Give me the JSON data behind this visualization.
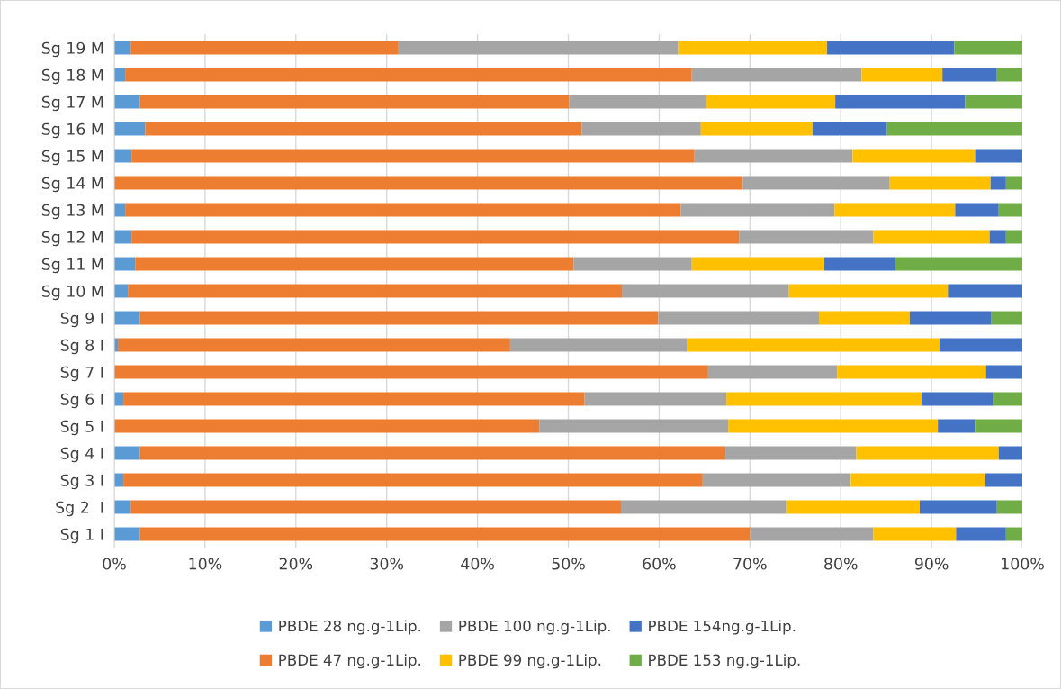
{
  "chart_data": {
    "type": "bar",
    "orientation": "horizontal",
    "stacked": true,
    "categories": [
      "Sg 19 M",
      "Sg 18 M",
      "Sg 17 M",
      "Sg 16 M",
      "Sg 15 M",
      "Sg 14 M",
      "Sg 13 M",
      "Sg 12 M",
      "Sg 11 M",
      "Sg 10 M",
      "Sg 9 I",
      "Sg 8 I",
      "Sg 7 I",
      "Sg 6 I",
      "Sg 5 I",
      "Sg 4 I",
      "Sg 3 I",
      "Sg 2  I",
      "Sg 1 I"
    ],
    "series": [
      {
        "name": "PBDE 28 ng.g-1Lip.",
        "color": "#5b9bd5",
        "values": [
          1.8,
          1.2,
          2.8,
          3.4,
          1.9,
          0,
          1.2,
          1.9,
          2.3,
          1.5,
          2.8,
          0.4,
          0,
          1.0,
          0,
          2.8,
          1.0,
          1.8,
          2.8
        ]
      },
      {
        "name": "PBDE 47 ng.g-1Lip.",
        "color": "#ed7d31",
        "values": [
          29.5,
          62.4,
          47.3,
          48.1,
          62.0,
          69.2,
          61.2,
          66.9,
          48.3,
          54.4,
          57.1,
          43.2,
          65.4,
          50.8,
          46.8,
          64.5,
          63.8,
          54.0,
          67.2
        ]
      },
      {
        "name": "PBDE 100 ng.g-1Lip.",
        "color": "#a5a5a5",
        "values": [
          30.8,
          18.7,
          15.1,
          13.1,
          17.4,
          16.2,
          16.9,
          14.8,
          13.0,
          18.4,
          17.7,
          19.5,
          14.2,
          15.6,
          20.8,
          14.4,
          16.3,
          18.2,
          13.6
        ]
      },
      {
        "name": "PBDE 99 ng.g-1Lip.",
        "color": "#ffc000",
        "values": [
          16.4,
          8.9,
          14.2,
          12.3,
          13.5,
          11.1,
          13.3,
          12.8,
          14.6,
          17.5,
          10.0,
          27.8,
          16.4,
          21.5,
          23.1,
          15.7,
          14.8,
          14.7,
          9.1
        ]
      },
      {
        "name": "PBDE 154ng.g-1Lip.",
        "color": "#4472c4",
        "values": [
          14.0,
          6.0,
          14.3,
          8.2,
          5.2,
          1.7,
          4.8,
          1.8,
          7.8,
          8.2,
          9.0,
          9.1,
          4.0,
          7.9,
          4.1,
          2.6,
          4.1,
          8.5,
          5.5
        ]
      },
      {
        "name": "PBDE 153 ng.g-1Lip.",
        "color": "#70ad47",
        "values": [
          7.5,
          2.8,
          6.3,
          14.9,
          0,
          1.8,
          2.6,
          1.8,
          14.0,
          0,
          3.4,
          0,
          0,
          3.2,
          5.2,
          0,
          0,
          2.8,
          1.8
        ]
      }
    ],
    "xlim": [
      0,
      100
    ],
    "xticks": [
      {
        "value": 0,
        "label": "0%"
      },
      {
        "value": 10,
        "label": "10%"
      },
      {
        "value": 20,
        "label": "20%"
      },
      {
        "value": 30,
        "label": "30%"
      },
      {
        "value": 40,
        "label": "40%"
      },
      {
        "value": 50,
        "label": "50%"
      },
      {
        "value": 60,
        "label": "60%"
      },
      {
        "value": 70,
        "label": "70%"
      },
      {
        "value": 80,
        "label": "80%"
      },
      {
        "value": 90,
        "label": "90%"
      },
      {
        "value": 100,
        "label": "100%"
      }
    ],
    "grid": "x",
    "legend": "bottom"
  }
}
